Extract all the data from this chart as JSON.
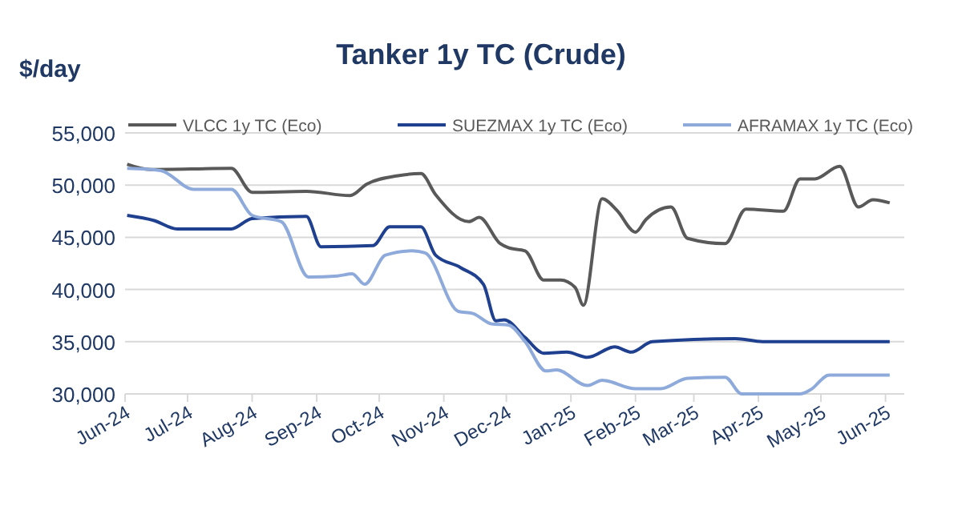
{
  "chart_data": {
    "type": "line",
    "title": "Tanker 1y TC (Crude)",
    "ylabel": "$/day",
    "legend": "top",
    "grid": "y",
    "marker": "none",
    "line_style": "solid",
    "xlim": [
      "2024-06-01",
      "2025-06-10"
    ],
    "xticks": [
      {
        "value": "2024-06-01",
        "label": "Jun-24"
      },
      {
        "value": "2024-07-01",
        "label": "Jul-24"
      },
      {
        "value": "2024-08-01",
        "label": "Aug-24"
      },
      {
        "value": "2024-09-01",
        "label": "Sep-24"
      },
      {
        "value": "2024-10-01",
        "label": "Oct-24"
      },
      {
        "value": "2024-11-01",
        "label": "Nov-24"
      },
      {
        "value": "2024-12-01",
        "label": "Dec-24"
      },
      {
        "value": "2025-01-01",
        "label": "Jan-25"
      },
      {
        "value": "2025-02-01",
        "label": "Feb-25"
      },
      {
        "value": "2025-03-01",
        "label": "Mar-25"
      },
      {
        "value": "2025-04-01",
        "label": "Apr-25"
      },
      {
        "value": "2025-05-01",
        "label": "May-25"
      },
      {
        "value": "2025-06-01",
        "label": "Jun-25"
      }
    ],
    "ylim": [
      30000,
      55000
    ],
    "yticks": [
      {
        "value": 30000,
        "label": "30,000"
      },
      {
        "value": 35000,
        "label": "35,000"
      },
      {
        "value": 40000,
        "label": "40,000"
      },
      {
        "value": 45000,
        "label": "45,000"
      },
      {
        "value": 50000,
        "label": "50,000"
      },
      {
        "value": 55000,
        "label": "55,000"
      }
    ],
    "series": [
      {
        "name": "VLCC 1y TC (Eco)",
        "color": "#595959",
        "x": [
          "2024-06-02",
          "2024-06-13",
          "2024-07-22",
          "2024-08-01",
          "2024-08-27",
          "2024-09-17",
          "2024-09-25",
          "2024-10-10",
          "2024-10-21",
          "2024-10-28",
          "2024-11-13",
          "2024-11-18",
          "2024-11-28",
          "2024-12-02",
          "2024-12-10",
          "2024-12-19",
          "2024-12-27",
          "2025-01-03",
          "2025-01-07",
          "2025-01-16",
          "2025-01-23",
          "2025-02-01",
          "2025-02-06",
          "2025-02-18",
          "2025-02-26",
          "2025-03-16",
          "2025-03-26",
          "2025-04-13",
          "2025-04-21",
          "2025-04-28",
          "2025-05-10",
          "2025-05-19",
          "2025-05-26",
          "2025-06-03"
        ],
        "values": [
          52000,
          51500,
          51600,
          49300,
          49400,
          49000,
          50100,
          50900,
          51100,
          49100,
          46500,
          46900,
          44400,
          44000,
          43700,
          40900,
          40900,
          40200,
          38500,
          48700,
          47600,
          45500,
          46700,
          47900,
          44900,
          44400,
          47700,
          47500,
          50600,
          50600,
          51800,
          47900,
          48600,
          48300
        ]
      },
      {
        "name": "SUEZMAX 1y TC (Eco)",
        "color": "#1f3f8f",
        "x": [
          "2024-06-02",
          "2024-06-15",
          "2024-06-26",
          "2024-07-22",
          "2024-08-01",
          "2024-08-27",
          "2024-09-03",
          "2024-09-28",
          "2024-10-06",
          "2024-10-21",
          "2024-10-28",
          "2024-11-09",
          "2024-11-20",
          "2024-11-26",
          "2024-11-30",
          "2024-12-10",
          "2024-12-19",
          "2024-12-30",
          "2025-01-09",
          "2025-01-22",
          "2025-01-30",
          "2025-02-09",
          "2025-03-21",
          "2025-04-03",
          "2025-06-03"
        ],
        "values": [
          47100,
          46600,
          45800,
          45800,
          46800,
          47000,
          44100,
          44200,
          46000,
          46000,
          43300,
          42100,
          40500,
          37000,
          37100,
          35400,
          33900,
          34000,
          33500,
          34500,
          34000,
          35000,
          35300,
          35000,
          35000
        ]
      },
      {
        "name": "AFRAMAX 1y TC (Eco)",
        "color": "#8eaadb",
        "x": [
          "2024-06-02",
          "2024-06-18",
          "2024-07-04",
          "2024-07-22",
          "2024-08-01",
          "2024-08-15",
          "2024-08-28",
          "2024-09-11",
          "2024-09-18",
          "2024-09-24",
          "2024-10-04",
          "2024-10-17",
          "2024-10-23",
          "2024-11-08",
          "2024-11-15",
          "2024-11-24",
          "2024-12-02",
          "2024-12-10",
          "2024-12-20",
          "2024-12-25",
          "2025-01-09",
          "2025-01-16",
          "2025-02-01",
          "2025-02-13",
          "2025-02-26",
          "2025-03-16",
          "2025-03-24",
          "2025-04-21",
          "2025-04-26",
          "2025-05-05",
          "2025-06-03"
        ],
        "values": [
          51600,
          51400,
          49600,
          49600,
          47100,
          46500,
          41200,
          41300,
          41500,
          40500,
          43300,
          43700,
          43500,
          37900,
          37700,
          36700,
          36600,
          35000,
          32200,
          32300,
          30800,
          31300,
          30500,
          30500,
          31500,
          31600,
          30000,
          30000,
          30400,
          31800,
          31800
        ]
      }
    ]
  }
}
